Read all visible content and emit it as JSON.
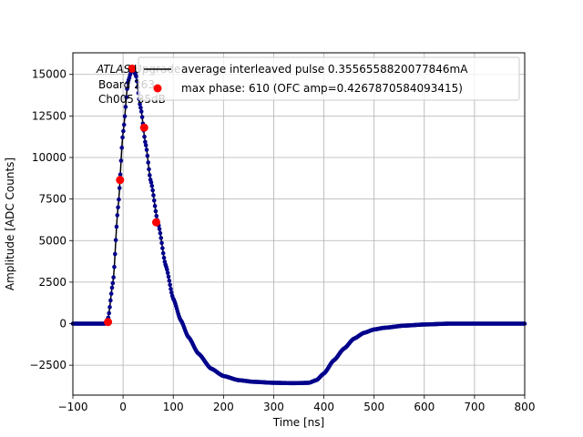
{
  "chart_data": {
    "type": "scatter",
    "xlabel": "Time [ns]",
    "ylabel": "Amplitude [ADC Counts]",
    "xlim": [
      -100,
      800
    ],
    "ylim": [
      -4300,
      16300
    ],
    "xticks": [
      -100,
      0,
      100,
      200,
      300,
      400,
      500,
      600,
      700,
      800
    ],
    "yticks": [
      -2500,
      0,
      2500,
      5000,
      7500,
      10000,
      12500,
      15000
    ],
    "xtick_labels": [
      "−100",
      "0",
      "100",
      "200",
      "300",
      "400",
      "500",
      "600",
      "700",
      "800"
    ],
    "ytick_labels": [
      "−2500",
      "0",
      "2500",
      "5000",
      "7500",
      "10000",
      "12500",
      "15000"
    ],
    "grid": true,
    "legend_placement": "top-right",
    "annotation": {
      "line1_italic": "ATLAS",
      "line1_rest": " Upgrade",
      "line2": "Board 263",
      "line3": "Ch005 35dB"
    },
    "series": [
      {
        "name": "average interleaved pulse 0.3556558820077846mA",
        "style": "line+dots",
        "line_color": "#000000",
        "marker_color": "#00008b",
        "key_points": [
          [
            -100,
            0
          ],
          [
            -35,
            0
          ],
          [
            -30,
            300
          ],
          [
            -20,
            2500
          ],
          [
            -10,
            7000
          ],
          [
            0,
            11500
          ],
          [
            10,
            14600
          ],
          [
            18,
            15350
          ],
          [
            25,
            15000
          ],
          [
            35,
            13000
          ],
          [
            45,
            10800
          ],
          [
            55,
            8600
          ],
          [
            70,
            6000
          ],
          [
            85,
            3500
          ],
          [
            100,
            1500
          ],
          [
            115,
            200
          ],
          [
            130,
            -800
          ],
          [
            150,
            -1800
          ],
          [
            175,
            -2700
          ],
          [
            200,
            -3150
          ],
          [
            230,
            -3400
          ],
          [
            260,
            -3500
          ],
          [
            300,
            -3560
          ],
          [
            340,
            -3580
          ],
          [
            370,
            -3560
          ],
          [
            385,
            -3400
          ],
          [
            400,
            -3000
          ],
          [
            420,
            -2200
          ],
          [
            440,
            -1500
          ],
          [
            460,
            -900
          ],
          [
            480,
            -550
          ],
          [
            500,
            -350
          ],
          [
            520,
            -250
          ],
          [
            560,
            -120
          ],
          [
            600,
            -50
          ],
          [
            650,
            0
          ],
          [
            700,
            0
          ],
          [
            800,
            0
          ]
        ]
      },
      {
        "name": "max phase: 610 (OFC amp=0.4267870584093415)",
        "style": "markers",
        "marker_color": "#ff0000",
        "x": [
          -30,
          -6,
          18,
          42,
          66
        ],
        "y": [
          100,
          8650,
          15350,
          11800,
          6100
        ]
      }
    ]
  }
}
